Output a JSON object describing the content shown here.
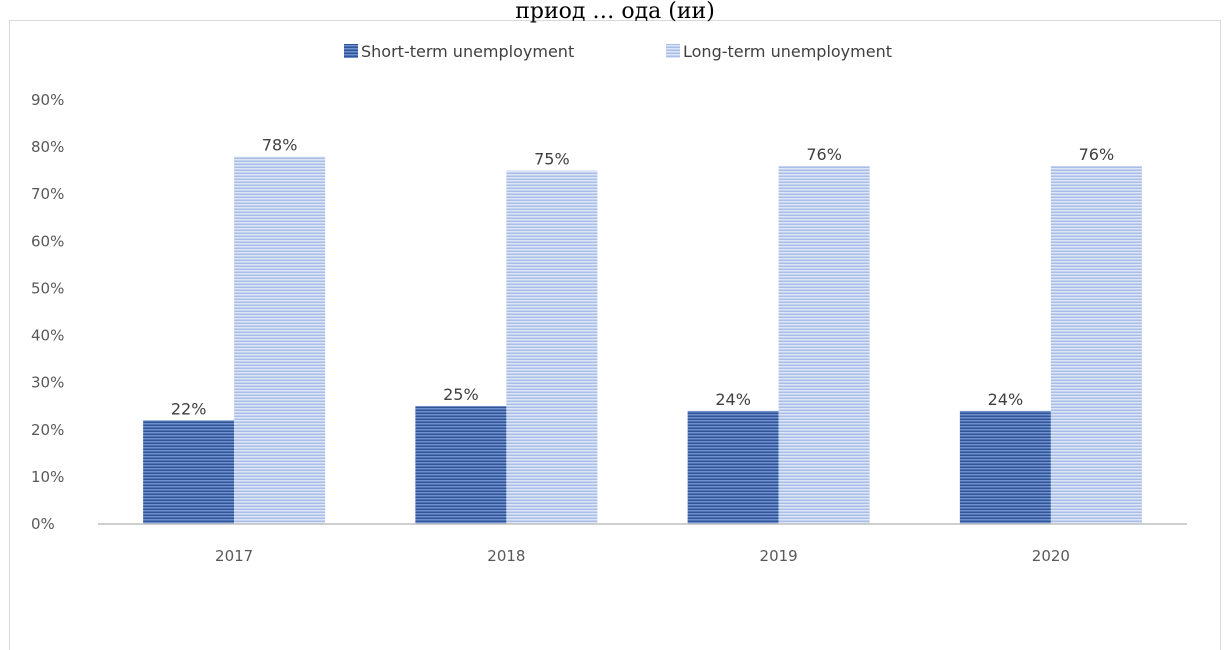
{
  "header": {
    "clipped_title": "приод … ода (ии)"
  },
  "colors": {
    "short": "#4472c4",
    "long": "#b4c7e7",
    "axis": "#bfbfbf",
    "text": "#595959"
  },
  "chart_data": {
    "type": "bar",
    "title": "",
    "xlabel": "",
    "ylabel": "",
    "categories": [
      "2017",
      "2018",
      "2019",
      "2020"
    ],
    "series": [
      {
        "name": "Short-term unemployment",
        "values": [
          22,
          25,
          24,
          24
        ],
        "labels": [
          "22%",
          "25%",
          "24%",
          "24%"
        ]
      },
      {
        "name": "Long-term unemployment",
        "values": [
          78,
          75,
          76,
          76
        ],
        "labels": [
          "78%",
          "75%",
          "76%",
          "76%"
        ]
      }
    ],
    "ylim": [
      0,
      90
    ],
    "yticks": [
      "0%",
      "10%",
      "20%",
      "30%",
      "40%",
      "50%",
      "60%",
      "70%",
      "80%",
      "90%"
    ],
    "grid": false,
    "legend": "top-center",
    "fill_pattern": "horizontal-stripes"
  }
}
